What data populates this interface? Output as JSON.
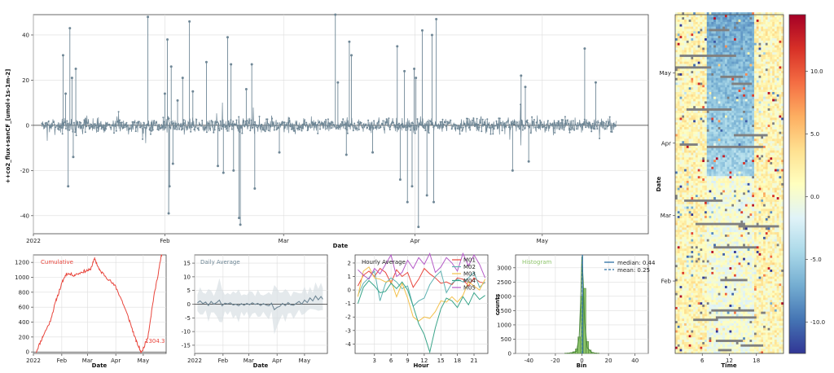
{
  "colors": {
    "main_series": "#6f8796",
    "cumulative": "#e8453c",
    "daily": "#6f8796",
    "band": "#d9dfe4",
    "histogram": "#8dc46a",
    "median_line": "#2c6fa3",
    "mean_line": "#2c6fa3",
    "heatmap_missing": "#7f7f7f",
    "hourly_M01": "#e8453c",
    "hourly_M02": "#5fb3b3",
    "hourly_M03": "#f3c04a",
    "hourly_M04": "#3aa58a",
    "hourly_M05": "#b55ac7"
  },
  "chart_data": [
    {
      "id": "timeseries",
      "type": "line",
      "title": "",
      "xlabel": "Date",
      "ylabel": "++co2_flux+sanCF_[umol+1s-1m-2]",
      "xticks": [
        "2022",
        "Feb",
        "Mar",
        "Apr",
        "May"
      ],
      "xtick_days": [
        0,
        31,
        59,
        90,
        120
      ],
      "xlim_days": [
        0,
        145
      ],
      "ylim": [
        -48,
        49
      ],
      "yticks": [
        -40,
        -20,
        0,
        20,
        40
      ],
      "grid": true,
      "spikes": [
        {
          "day": 7.0,
          "y": 31
        },
        {
          "day": 7.6,
          "y": 14
        },
        {
          "day": 8.2,
          "y": -27
        },
        {
          "day": 8.6,
          "y": 43
        },
        {
          "day": 9.1,
          "y": 21
        },
        {
          "day": 10.0,
          "y": 25
        },
        {
          "day": 9.4,
          "y": -14
        },
        {
          "day": 27.0,
          "y": 48
        },
        {
          "day": 31.0,
          "y": 14
        },
        {
          "day": 31.6,
          "y": 38
        },
        {
          "day": 31.9,
          "y": -39
        },
        {
          "day": 32.1,
          "y": -27
        },
        {
          "day": 32.5,
          "y": 26
        },
        {
          "day": 32.9,
          "y": -17
        },
        {
          "day": 34.0,
          "y": 11
        },
        {
          "day": 35.2,
          "y": 21
        },
        {
          "day": 36.8,
          "y": 46
        },
        {
          "day": 37.6,
          "y": 15
        },
        {
          "day": 40.8,
          "y": 28
        },
        {
          "day": 43.5,
          "y": -18
        },
        {
          "day": 44.8,
          "y": -21
        },
        {
          "day": 45.8,
          "y": 39
        },
        {
          "day": 46.6,
          "y": 27
        },
        {
          "day": 47.2,
          "y": -20
        },
        {
          "day": 48.5,
          "y": -41
        },
        {
          "day": 48.8,
          "y": -44
        },
        {
          "day": 50.2,
          "y": 16
        },
        {
          "day": 51.5,
          "y": 27
        },
        {
          "day": 52.2,
          "y": -28
        },
        {
          "day": 58.0,
          "y": -12
        },
        {
          "day": 71.2,
          "y": 49
        },
        {
          "day": 71.8,
          "y": 19
        },
        {
          "day": 73.8,
          "y": -13
        },
        {
          "day": 74.5,
          "y": 37
        },
        {
          "day": 75.0,
          "y": 31
        },
        {
          "day": 80.0,
          "y": -12
        },
        {
          "day": 85.8,
          "y": 35
        },
        {
          "day": 86.5,
          "y": -24
        },
        {
          "day": 87.5,
          "y": 24
        },
        {
          "day": 88.2,
          "y": -34
        },
        {
          "day": 89.3,
          "y": -27
        },
        {
          "day": 89.8,
          "y": 25
        },
        {
          "day": 90.2,
          "y": 21
        },
        {
          "day": 90.8,
          "y": -45
        },
        {
          "day": 91.7,
          "y": 42
        },
        {
          "day": 92.8,
          "y": -31
        },
        {
          "day": 94.0,
          "y": 40
        },
        {
          "day": 95.0,
          "y": 47
        },
        {
          "day": 94.4,
          "y": -34
        },
        {
          "day": 113.0,
          "y": -20
        },
        {
          "day": 115.0,
          "y": 22
        },
        {
          "day": 116.0,
          "y": 17
        },
        {
          "day": 116.8,
          "y": -16
        },
        {
          "day": 130.0,
          "y": 34
        },
        {
          "day": 132.6,
          "y": 19
        }
      ]
    },
    {
      "id": "cumulative",
      "type": "line",
      "title": "Cumulative",
      "xlabel": "Date",
      "xticks": [
        "2022",
        "Feb",
        "Mar",
        "Apr",
        "May"
      ],
      "xtick_days": [
        0,
        31,
        59,
        90,
        120
      ],
      "xlim_days": [
        0,
        145
      ],
      "ylim": [
        -20,
        1300
      ],
      "yticks": [
        0,
        200,
        400,
        600,
        800,
        1000,
        1200
      ],
      "annotation": "1304.3",
      "points": [
        {
          "day": 3,
          "y": 0
        },
        {
          "day": 10,
          "y": 200
        },
        {
          "day": 18,
          "y": 400
        },
        {
          "day": 25,
          "y": 700
        },
        {
          "day": 32,
          "y": 950
        },
        {
          "day": 36,
          "y": 1050
        },
        {
          "day": 45,
          "y": 1030
        },
        {
          "day": 55,
          "y": 1080
        },
        {
          "day": 62,
          "y": 1100
        },
        {
          "day": 67,
          "y": 1250
        },
        {
          "day": 72,
          "y": 1100
        },
        {
          "day": 80,
          "y": 1000
        },
        {
          "day": 90,
          "y": 870
        },
        {
          "day": 97,
          "y": 680
        },
        {
          "day": 105,
          "y": 420
        },
        {
          "day": 112,
          "y": 150
        },
        {
          "day": 118,
          "y": -10
        },
        {
          "day": 125,
          "y": 200
        },
        {
          "day": 131,
          "y": 700
        },
        {
          "day": 137,
          "y": 1100
        },
        {
          "day": 140,
          "y": 1304.3
        }
      ]
    },
    {
      "id": "daily",
      "type": "line",
      "title": "Daily Average",
      "xlabel": "Date",
      "xticks": [
        "2022",
        "Feb",
        "Mar",
        "Apr",
        "May"
      ],
      "xtick_days": [
        0,
        31,
        59,
        90,
        120
      ],
      "xlim_days": [
        0,
        145
      ],
      "ylim": [
        -18,
        18
      ],
      "yticks": [
        -15,
        -10,
        -5,
        0,
        5,
        10,
        15
      ],
      "points": [
        {
          "day": 3,
          "y": 0.5
        },
        {
          "day": 6,
          "y": 1.2
        },
        {
          "day": 9,
          "y": 0.2
        },
        {
          "day": 12,
          "y": 0.8
        },
        {
          "day": 15,
          "y": -0.5
        },
        {
          "day": 18,
          "y": 1.0
        },
        {
          "day": 21,
          "y": 0.0
        },
        {
          "day": 24,
          "y": 0.6
        },
        {
          "day": 27,
          "y": 1.5
        },
        {
          "day": 30,
          "y": -0.6
        },
        {
          "day": 33,
          "y": 0.4
        },
        {
          "day": 36,
          "y": 0.1
        },
        {
          "day": 39,
          "y": 0.5
        },
        {
          "day": 42,
          "y": -0.3
        },
        {
          "day": 45,
          "y": 0.0
        },
        {
          "day": 48,
          "y": -0.6
        },
        {
          "day": 51,
          "y": 0.2
        },
        {
          "day": 54,
          "y": -0.4
        },
        {
          "day": 57,
          "y": 0.3
        },
        {
          "day": 60,
          "y": -0.2
        },
        {
          "day": 63,
          "y": 0.5
        },
        {
          "day": 66,
          "y": -0.1
        },
        {
          "day": 69,
          "y": 0.3
        },
        {
          "day": 72,
          "y": -0.5
        },
        {
          "day": 75,
          "y": 0.2
        },
        {
          "day": 78,
          "y": -0.3
        },
        {
          "day": 81,
          "y": -0.6
        },
        {
          "day": 84,
          "y": 0.4
        },
        {
          "day": 87,
          "y": -2.0
        },
        {
          "day": 90,
          "y": -1.2
        },
        {
          "day": 93,
          "y": -0.8
        },
        {
          "day": 96,
          "y": 0.3
        },
        {
          "day": 99,
          "y": -0.5
        },
        {
          "day": 102,
          "y": 0.6
        },
        {
          "day": 105,
          "y": -0.2
        },
        {
          "day": 108,
          "y": -0.4
        },
        {
          "day": 111,
          "y": 0.3
        },
        {
          "day": 114,
          "y": 1.0
        },
        {
          "day": 117,
          "y": 0.0
        },
        {
          "day": 120,
          "y": 1.5
        },
        {
          "day": 123,
          "y": 0.6
        },
        {
          "day": 126,
          "y": 2.3
        },
        {
          "day": 129,
          "y": 1.2
        },
        {
          "day": 132,
          "y": 3.0
        },
        {
          "day": 135,
          "y": 1.6
        },
        {
          "day": 138,
          "y": 2.8
        },
        {
          "day": 140,
          "y": 1.8
        }
      ],
      "band_halfwidth": [
        3,
        5,
        4,
        3,
        6,
        4,
        3,
        5,
        8,
        6,
        3,
        4,
        3,
        5,
        4,
        6,
        3,
        4,
        3,
        5,
        4,
        3,
        5,
        4,
        3,
        4,
        5,
        3,
        9,
        7,
        5,
        4,
        6,
        4,
        3,
        5,
        4,
        3,
        4,
        5,
        3,
        4,
        3,
        5,
        4,
        5,
        4
      ]
    },
    {
      "id": "hourly",
      "type": "line",
      "title": "Hourly Average",
      "xlabel": "Hour",
      "xticks": [
        3,
        6,
        9,
        12,
        15,
        18,
        21
      ],
      "xlim": [
        -0.5,
        23.5
      ],
      "ylim": [
        -4.7,
        2.6
      ],
      "yticks": [
        -4,
        -3,
        -2,
        -1,
        0,
        1,
        2
      ],
      "legend_position": "upper-right",
      "series": [
        {
          "name": "M01",
          "values": [
            0.3,
            1.1,
            1.4,
            1.0,
            1.6,
            1.3,
            0.5,
            1.5,
            1.0,
            1.3,
            0.2,
            0.8,
            1.6,
            1.2,
            0.9,
            0.5,
            0.6,
            0.4,
            0.9,
            0.8,
            0.3,
            0.9,
            0.6,
            0.5
          ]
        },
        {
          "name": "M02",
          "values": [
            -0.4,
            0.5,
            0.9,
            1.4,
            -0.8,
            0.5,
            0.9,
            0.6,
            0.1,
            0.3,
            -1.2,
            -0.8,
            -0.6,
            0.4,
            1.0,
            1.4,
            -0.2,
            0.5,
            0.8,
            0.6,
            0.9,
            1.3,
            0.2,
            0.6
          ]
        },
        {
          "name": "M03",
          "values": [
            -0.5,
            1.4,
            1.7,
            0.9,
            0.8,
            0.6,
            0.7,
            -0.5,
            0.5,
            -0.6,
            -2.0,
            -2.3,
            -2.0,
            -2.1,
            -1.6,
            -0.8,
            -0.9,
            -0.5,
            -0.9,
            -0.4,
            0.6,
            0.3,
            0.0,
            0.8
          ]
        },
        {
          "name": "M04",
          "values": [
            -1.0,
            0.2,
            0.7,
            0.3,
            -0.2,
            -0.1,
            0.5,
            0.1,
            0.6,
            0.0,
            -1.2,
            -2.5,
            -3.3,
            -4.6,
            -2.8,
            -1.4,
            -0.6,
            -0.8,
            -1.3,
            -0.5,
            -1.1,
            -0.2,
            -0.7,
            -0.4
          ]
        },
        {
          "name": "M05",
          "values": [
            1.5,
            1.1,
            0.8,
            1.6,
            1.2,
            1.9,
            2.6,
            1.0,
            1.3,
            2.2,
            1.6,
            2.4,
            1.9,
            2.7,
            1.3,
            1.7,
            2.4,
            2.0,
            1.4,
            2.7,
            1.8,
            2.6,
            1.9,
            0.9
          ]
        }
      ]
    },
    {
      "id": "histogram",
      "type": "bar",
      "title": "Histogram",
      "xlabel": "Bin",
      "ylabel": "counts",
      "xlim": [
        -50,
        50
      ],
      "xticks": [
        -40,
        -20,
        0,
        20,
        40
      ],
      "ylim": [
        0,
        3450
      ],
      "yticks": [
        0,
        500,
        1000,
        1500,
        2000,
        2500,
        3000
      ],
      "legend_position": "upper-right",
      "median_label": "median: 0.44",
      "mean_label": "mean: 0.25",
      "median": 0.44,
      "mean": 0.25,
      "bin_width": 2,
      "bins": [
        {
          "x": -12,
          "count": 10
        },
        {
          "x": -10,
          "count": 18
        },
        {
          "x": -8,
          "count": 30
        },
        {
          "x": -6,
          "count": 60
        },
        {
          "x": -4,
          "count": 160
        },
        {
          "x": -2,
          "count": 580
        },
        {
          "x": 0,
          "count": 2000
        },
        {
          "x": 2,
          "count": 2280
        },
        {
          "x": 4,
          "count": 420
        },
        {
          "x": 6,
          "count": 120
        },
        {
          "x": 8,
          "count": 40
        },
        {
          "x": 10,
          "count": 20
        },
        {
          "x": 12,
          "count": 10
        }
      ],
      "density": [
        {
          "x": -8,
          "y": 10
        },
        {
          "x": -4,
          "y": 80
        },
        {
          "x": -2,
          "y": 600
        },
        {
          "x": -1,
          "y": 1800
        },
        {
          "x": 0,
          "y": 3400
        },
        {
          "x": 1,
          "y": 2500
        },
        {
          "x": 2,
          "y": 1100
        },
        {
          "x": 4,
          "y": 200
        },
        {
          "x": 8,
          "y": 15
        }
      ]
    },
    {
      "id": "heatmap",
      "type": "heatmap",
      "xlabel": "Time",
      "ylabel": "Date",
      "xticks": [
        6,
        12,
        18
      ],
      "yticks": [
        "May",
        "Apr",
        "Mar",
        "Feb"
      ],
      "ytick_days": [
        120,
        90,
        59,
        31
      ],
      "xlim": [
        0,
        24
      ],
      "ylim_days": [
        0,
        145
      ],
      "colorbar_ticks": [
        -10.0,
        -5.0,
        0.0,
        5.0,
        10.0
      ],
      "colorbar_labels": [
        "-10.0",
        "-5.0",
        "0.0",
        "5.0",
        "10.0"
      ],
      "clim": [
        -12.5,
        14.5
      ]
    }
  ]
}
